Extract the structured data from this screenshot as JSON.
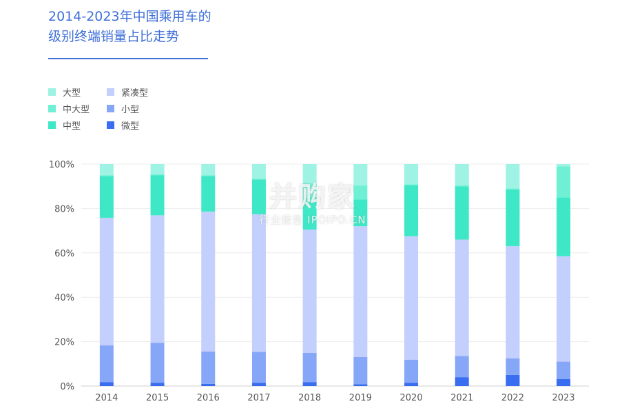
{
  "colors": {
    "大型": "#9ff3e4",
    "中大型": "#6ff0d4",
    "中型": "#3ee8c6",
    "紧凑型": "#c3cffc",
    "小型": "#86a6f7",
    "微型": "#3a6ef0",
    "title": "#3f6fd8",
    "grid": "#ececec",
    "axis_text": "#555555"
  },
  "watermark": {
    "main": "并购家",
    "sub": "行业报告 IPOIPO.CN"
  },
  "chart_data": {
    "type": "bar",
    "stacked": true,
    "title": "2014-2023年中国乘用车的级别终端销量占比走势",
    "title_lines": [
      "2014-2023年中国乘用车的",
      "级别终端销量占比走势"
    ],
    "xlabel": "",
    "ylabel": "",
    "ylim": [
      0,
      100
    ],
    "y_ticks": [
      "0%",
      "20%",
      "40%",
      "60%",
      "80%",
      "100%"
    ],
    "grid": true,
    "legend_position": "top-left",
    "categories": [
      "2014",
      "2015",
      "2016",
      "2017",
      "2018",
      "2019",
      "2020",
      "2021",
      "2022",
      "2023"
    ],
    "series": [
      {
        "name": "微型",
        "values": [
          1.8,
          1.5,
          1.0,
          1.4,
          1.8,
          0.8,
          1.4,
          4.0,
          5.0,
          3.2
        ]
      },
      {
        "name": "小型",
        "values": [
          16.5,
          18.0,
          14.6,
          14.0,
          13.1,
          12.3,
          10.5,
          9.5,
          7.5,
          7.8
        ]
      },
      {
        "name": "紧凑型",
        "values": [
          57.5,
          57.4,
          63.0,
          62.0,
          55.6,
          58.9,
          55.6,
          52.5,
          50.5,
          47.5
        ]
      },
      {
        "name": "中型",
        "values": [
          18.8,
          18.1,
          16.0,
          15.6,
          14.5,
          12.0,
          23.0,
          24.0,
          25.5,
          26.5
        ]
      },
      {
        "name": "中大型",
        "values": [
          0.4,
          0.4,
          0.4,
          0.4,
          6.3,
          6.4,
          0.4,
          0.4,
          0.5,
          14.0
        ]
      },
      {
        "name": "大型",
        "values": [
          5.0,
          4.6,
          5.0,
          6.6,
          8.7,
          9.6,
          9.1,
          9.6,
          11.0,
          1.0
        ]
      }
    ],
    "legend": [
      {
        "name": "大型",
        "col": 0,
        "row": 0
      },
      {
        "name": "中大型",
        "col": 0,
        "row": 1
      },
      {
        "name": "中型",
        "col": 0,
        "row": 2
      },
      {
        "name": "紧凑型",
        "col": 1,
        "row": 0
      },
      {
        "name": "小型",
        "col": 1,
        "row": 1
      },
      {
        "name": "微型",
        "col": 1,
        "row": 2
      }
    ]
  }
}
